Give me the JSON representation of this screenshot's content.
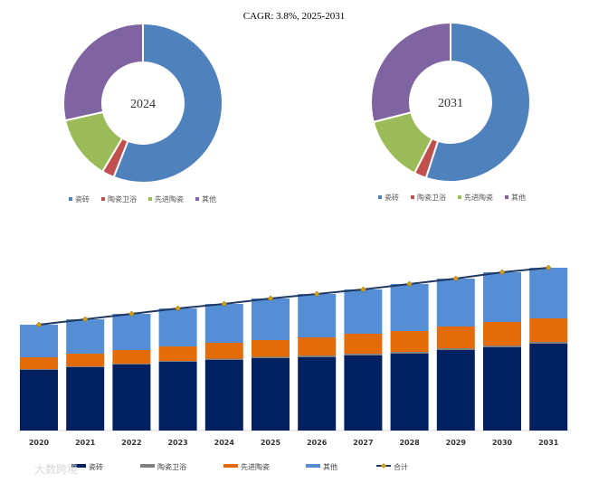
{
  "chart_data": [
    {
      "type": "pie",
      "title": "CAGR: 3.8%, 2025-2031",
      "center_label": "2024",
      "legend": [
        "瓷砖",
        "陶瓷卫浴",
        "先进陶瓷",
        "其他"
      ],
      "values": [
        56,
        2.5,
        13,
        28.5
      ],
      "colors": [
        "#4f81bd",
        "#c0504d",
        "#9bbb59",
        "#8064a2"
      ]
    },
    {
      "type": "pie",
      "center_label": "2031",
      "legend": [
        "瓷砖",
        "陶瓷卫浴",
        "先进陶瓷",
        "其他"
      ],
      "values": [
        55,
        2.5,
        13.5,
        29
      ],
      "colors": [
        "#4f81bd",
        "#c0504d",
        "#9bbb59",
        "#8064a2"
      ]
    },
    {
      "type": "bar",
      "stacked": true,
      "categories": [
        "2020",
        "2021",
        "2022",
        "2023",
        "2024",
        "2025",
        "2026",
        "2027",
        "2028",
        "2029",
        "2030",
        "2031"
      ],
      "series": [
        {
          "name": "瓷砖",
          "color": "#002060",
          "values": [
            67,
            70,
            73,
            76,
            78,
            80,
            81,
            83,
            85,
            89,
            92,
            96
          ]
        },
        {
          "name": "陶瓷卫浴",
          "color": "#808080",
          "values": [
            1,
            1,
            1,
            1,
            1.5,
            1.5,
            2,
            2,
            2,
            2,
            2,
            2
          ]
        },
        {
          "name": "先进陶瓷",
          "color": "#e36c09",
          "values": [
            13,
            14,
            15,
            16,
            17.5,
            18.5,
            20,
            22,
            23,
            24,
            26,
            26
          ]
        },
        {
          "name": "其他",
          "color": "#558ed5",
          "values": [
            36,
            38,
            40,
            42,
            43,
            46,
            48,
            49,
            52,
            53,
            55,
            56
          ]
        }
      ],
      "line": {
        "name": "合计",
        "color": "#1f3864",
        "marker_color": "#d4a017",
        "values": [
          117,
          123,
          129,
          135,
          140,
          146,
          151,
          156,
          162,
          168,
          175,
          180
        ]
      },
      "ylim": [
        0,
        190
      ],
      "grid": false
    }
  ],
  "watermark": "大数跨境"
}
